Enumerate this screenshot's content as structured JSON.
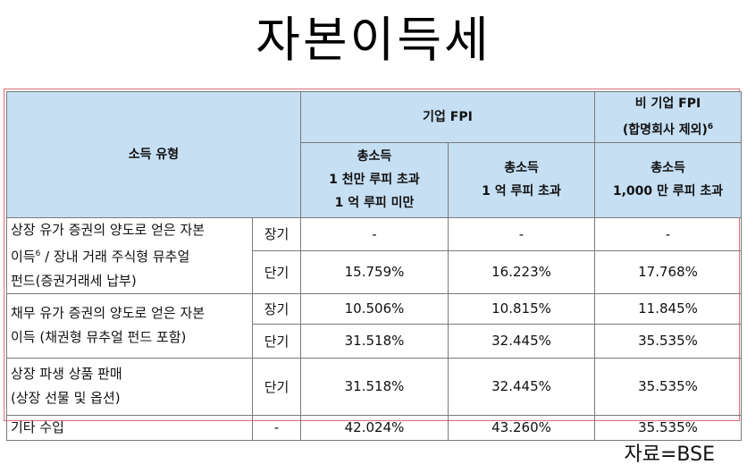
{
  "title": "자본이득세",
  "header": {
    "income_type": "소득 유형",
    "fpi_corp": "기업 FPI",
    "fpi_noncorp_line1": "비 기업 FPI",
    "fpi_noncorp_line2": "(합명회사 제외)",
    "fpi_noncorp_sup": "6",
    "col1_line1": "총소득",
    "col1_line2": "1 천만 루피 초과",
    "col1_line3": "1 억 루피 미만",
    "col2_line1": "총소득",
    "col2_line2": "1 억 루피 초과",
    "col3_line1": "총소득",
    "col3_line2": "1,000 만 루피 초과"
  },
  "rows": [
    {
      "category_line1": "상장 유가 증권의 양도로 얻은 자본",
      "category_line2_a": "이득",
      "category_sup": "6",
      "category_line2_b": " / 장내 거래 주식형 뮤추얼",
      "category_line3": "펀드(증권거래세 납부)",
      "sub": [
        {
          "term": "장기",
          "v1": "-",
          "v2": "-",
          "v3": "-"
        },
        {
          "term": "단기",
          "v1": "15.759%",
          "v2": "16.223%",
          "v3": "17.768%"
        }
      ]
    },
    {
      "category_line1": "채무 유가 증권의 양도로 얻은 자본",
      "category_line2": "이득 (채권형 뮤추얼 펀드 포함)",
      "sub": [
        {
          "term": "장기",
          "v1": "10.506%",
          "v2": "10.815%",
          "v3": "11.845%"
        },
        {
          "term": "단기",
          "v1": "31.518%",
          "v2": "32.445%",
          "v3": "35.535%"
        }
      ]
    },
    {
      "category_line1": "상장 파생 상품 판매",
      "category_line2": "(상장 선물 및 옵션)",
      "sub": [
        {
          "term": "단기",
          "v1": "31.518%",
          "v2": "32.445%",
          "v3": "35.535%"
        }
      ]
    },
    {
      "category_line1": "기타 수입",
      "sub": [
        {
          "term": "-",
          "v1": "42.024%",
          "v2": "43.260%",
          "v3": "35.535%"
        }
      ]
    }
  ],
  "source": "자료=BSE",
  "colors": {
    "header_bg": "#c6dff3",
    "frame": "#e06b78",
    "grid": "#7a7a7a"
  }
}
